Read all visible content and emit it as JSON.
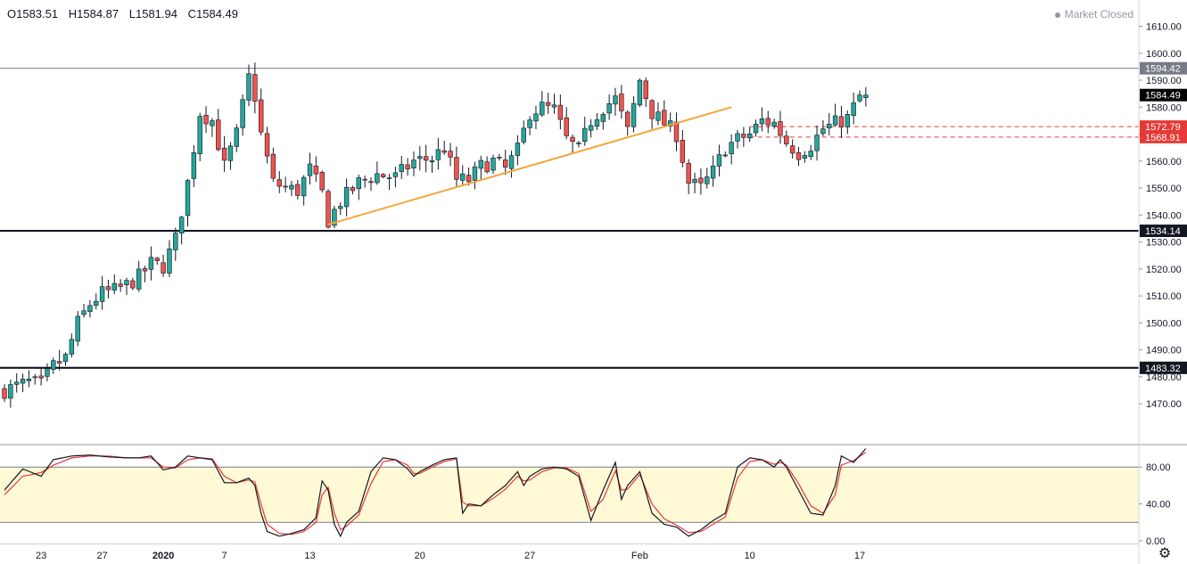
{
  "header": {
    "open": "O1583.51",
    "high": "H1584.87",
    "low": "L1581.94",
    "close": "C1584.49",
    "status": "Market Closed"
  },
  "icons": {
    "settings": "gear-icon"
  },
  "colors": {
    "up": "#26a69a",
    "down": "#ef5350",
    "wick": "#131722",
    "trendline": "#f4a63b",
    "dashed": "#e53935",
    "band": "#fff9d6",
    "k_line": "#131722",
    "d_line": "#e53935",
    "grid": "#9598a1"
  },
  "chart_data": [
    {
      "type": "candlestick",
      "title": "",
      "ylim": [
        1465,
        1615
      ],
      "y_ticks": [
        "1610.00",
        "1600.00",
        "1590.00",
        "1580.00",
        "1570.00",
        "1560.00",
        "1550.00",
        "1540.00",
        "1530.00",
        "1520.00",
        "1510.00",
        "1500.00",
        "1490.00",
        "1480.00",
        "1470.00"
      ],
      "x_ticks": [
        {
          "label": "23",
          "index": 6
        },
        {
          "label": "27",
          "index": 16
        },
        {
          "label": "2020",
          "index": 26
        },
        {
          "label": "7",
          "index": 36
        },
        {
          "label": "13",
          "index": 50
        },
        {
          "label": "20",
          "index": 68
        },
        {
          "label": "27",
          "index": 86
        },
        {
          "label": "Feb",
          "index": 104
        },
        {
          "label": "10",
          "index": 122
        },
        {
          "label": "17",
          "index": 140
        }
      ],
      "keypoints": [
        [
          0,
          1475
        ],
        [
          4,
          1478
        ],
        [
          6,
          1477
        ],
        [
          8,
          1484
        ],
        [
          10,
          1487
        ],
        [
          12,
          1500
        ],
        [
          14,
          1507
        ],
        [
          16,
          1511
        ],
        [
          18,
          1512
        ],
        [
          20,
          1514
        ],
        [
          22,
          1517
        ],
        [
          24,
          1522
        ],
        [
          26,
          1521
        ],
        [
          28,
          1531
        ],
        [
          30,
          1552
        ],
        [
          32,
          1578
        ],
        [
          34,
          1575
        ],
        [
          36,
          1558
        ],
        [
          38,
          1570
        ],
        [
          40,
          1591
        ],
        [
          41,
          1584
        ],
        [
          42,
          1570
        ],
        [
          44,
          1552
        ],
        [
          46,
          1550
        ],
        [
          48,
          1549
        ],
        [
          50,
          1557
        ],
        [
          52,
          1548
        ],
        [
          53,
          1538
        ],
        [
          55,
          1545
        ],
        [
          58,
          1552
        ],
        [
          61,
          1555
        ],
        [
          64,
          1554
        ],
        [
          67,
          1560
        ],
        [
          70,
          1561
        ],
        [
          72,
          1565
        ],
        [
          74,
          1553
        ],
        [
          76,
          1553
        ],
        [
          78,
          1558
        ],
        [
          80,
          1560
        ],
        [
          82,
          1557
        ],
        [
          84,
          1564
        ],
        [
          86,
          1578
        ],
        [
          88,
          1580
        ],
        [
          90,
          1579
        ],
        [
          92,
          1568
        ],
        [
          94,
          1564
        ],
        [
          96,
          1575
        ],
        [
          98,
          1580
        ],
        [
          100,
          1583
        ],
        [
          102,
          1571
        ],
        [
          104,
          1590
        ],
        [
          106,
          1578
        ],
        [
          108,
          1574
        ],
        [
          110,
          1570
        ],
        [
          112,
          1552
        ],
        [
          114,
          1550
        ],
        [
          116,
          1556
        ],
        [
          118,
          1565
        ],
        [
          120,
          1568
        ],
        [
          122,
          1570
        ],
        [
          124,
          1575
        ],
        [
          126,
          1574
        ],
        [
          128,
          1567
        ],
        [
          130,
          1563
        ],
        [
          132,
          1566
        ],
        [
          134,
          1572
        ],
        [
          136,
          1574
        ],
        [
          138,
          1576
        ],
        [
          140,
          1584
        ]
      ],
      "horizontal_lines": [
        {
          "value": 1594.42,
          "label": "1594.42",
          "style": "thin"
        },
        {
          "value": 1534.14,
          "label": "1534.14",
          "style": "thick"
        },
        {
          "value": 1483.32,
          "label": "1483.32",
          "style": "thick"
        },
        {
          "value": 1572.79,
          "label": "1572.79",
          "style": "dashed"
        },
        {
          "value": 1568.91,
          "label": "1568.91",
          "style": "dashed"
        }
      ],
      "last_price": {
        "value": 1584.49,
        "label": "1584.49"
      },
      "trendline": [
        {
          "index": 53,
          "value": 1536.5
        },
        {
          "index": 119,
          "value": 1580
        }
      ]
    },
    {
      "type": "line",
      "title": "",
      "ylim": [
        0,
        100
      ],
      "y_ticks": [
        "80.00",
        "40.00",
        "0.00"
      ],
      "band": [
        20,
        80
      ],
      "k_keypoints": [
        [
          0,
          55
        ],
        [
          3,
          78
        ],
        [
          6,
          70
        ],
        [
          8,
          88
        ],
        [
          11,
          92
        ],
        [
          14,
          93
        ],
        [
          17,
          91
        ],
        [
          20,
          90
        ],
        [
          22,
          90
        ],
        [
          24,
          92
        ],
        [
          26,
          77
        ],
        [
          28,
          80
        ],
        [
          30,
          92
        ],
        [
          32,
          90
        ],
        [
          34,
          88
        ],
        [
          36,
          63
        ],
        [
          38,
          63
        ],
        [
          40,
          68
        ],
        [
          41,
          60
        ],
        [
          42,
          30
        ],
        [
          43,
          10
        ],
        [
          45,
          5
        ],
        [
          47,
          8
        ],
        [
          49,
          12
        ],
        [
          51,
          25
        ],
        [
          52,
          65
        ],
        [
          53,
          55
        ],
        [
          54,
          18
        ],
        [
          55,
          5
        ],
        [
          56,
          20
        ],
        [
          58,
          32
        ],
        [
          60,
          75
        ],
        [
          62,
          90
        ],
        [
          64,
          88
        ],
        [
          66,
          78
        ],
        [
          67,
          70
        ],
        [
          68,
          75
        ],
        [
          70,
          82
        ],
        [
          72,
          88
        ],
        [
          74,
          90
        ],
        [
          75,
          30
        ],
        [
          76,
          40
        ],
        [
          78,
          38
        ],
        [
          80,
          50
        ],
        [
          82,
          60
        ],
        [
          84,
          75
        ],
        [
          85,
          60
        ],
        [
          86,
          70
        ],
        [
          88,
          78
        ],
        [
          90,
          80
        ],
        [
          92,
          78
        ],
        [
          94,
          70
        ],
        [
          96,
          22
        ],
        [
          98,
          55
        ],
        [
          100,
          85
        ],
        [
          101,
          45
        ],
        [
          102,
          60
        ],
        [
          104,
          75
        ],
        [
          106,
          30
        ],
        [
          108,
          18
        ],
        [
          110,
          15
        ],
        [
          112,
          5
        ],
        [
          114,
          12
        ],
        [
          116,
          22
        ],
        [
          118,
          30
        ],
        [
          120,
          80
        ],
        [
          122,
          90
        ],
        [
          124,
          88
        ],
        [
          126,
          80
        ],
        [
          127,
          88
        ],
        [
          128,
          80
        ],
        [
          130,
          55
        ],
        [
          132,
          30
        ],
        [
          134,
          28
        ],
        [
          136,
          60
        ],
        [
          137,
          92
        ],
        [
          139,
          85
        ],
        [
          141,
          100
        ]
      ],
      "d_keypoints": [
        [
          0,
          50
        ],
        [
          3,
          70
        ],
        [
          6,
          74
        ],
        [
          8,
          82
        ],
        [
          11,
          90
        ],
        [
          14,
          92
        ],
        [
          17,
          92
        ],
        [
          20,
          90
        ],
        [
          22,
          90
        ],
        [
          24,
          90
        ],
        [
          26,
          80
        ],
        [
          28,
          79
        ],
        [
          30,
          88
        ],
        [
          32,
          90
        ],
        [
          34,
          89
        ],
        [
          36,
          70
        ],
        [
          38,
          63
        ],
        [
          40,
          66
        ],
        [
          41,
          64
        ],
        [
          42,
          40
        ],
        [
          43,
          18
        ],
        [
          45,
          8
        ],
        [
          47,
          7
        ],
        [
          49,
          10
        ],
        [
          51,
          20
        ],
        [
          52,
          50
        ],
        [
          53,
          58
        ],
        [
          54,
          30
        ],
        [
          55,
          12
        ],
        [
          56,
          16
        ],
        [
          58,
          28
        ],
        [
          60,
          62
        ],
        [
          62,
          86
        ],
        [
          64,
          88
        ],
        [
          66,
          82
        ],
        [
          67,
          73
        ],
        [
          68,
          73
        ],
        [
          70,
          80
        ],
        [
          72,
          86
        ],
        [
          74,
          89
        ],
        [
          75,
          42
        ],
        [
          76,
          38
        ],
        [
          78,
          38
        ],
        [
          80,
          46
        ],
        [
          82,
          56
        ],
        [
          84,
          70
        ],
        [
          85,
          65
        ],
        [
          86,
          66
        ],
        [
          88,
          75
        ],
        [
          90,
          79
        ],
        [
          92,
          79
        ],
        [
          94,
          73
        ],
        [
          96,
          32
        ],
        [
          98,
          45
        ],
        [
          100,
          76
        ],
        [
          101,
          55
        ],
        [
          102,
          56
        ],
        [
          104,
          72
        ],
        [
          106,
          40
        ],
        [
          108,
          24
        ],
        [
          110,
          17
        ],
        [
          112,
          9
        ],
        [
          114,
          10
        ],
        [
          116,
          18
        ],
        [
          118,
          26
        ],
        [
          120,
          68
        ],
        [
          122,
          86
        ],
        [
          124,
          88
        ],
        [
          126,
          83
        ],
        [
          127,
          85
        ],
        [
          128,
          82
        ],
        [
          130,
          62
        ],
        [
          132,
          38
        ],
        [
          134,
          30
        ],
        [
          136,
          50
        ],
        [
          137,
          82
        ],
        [
          139,
          87
        ],
        [
          141,
          96
        ]
      ]
    }
  ]
}
